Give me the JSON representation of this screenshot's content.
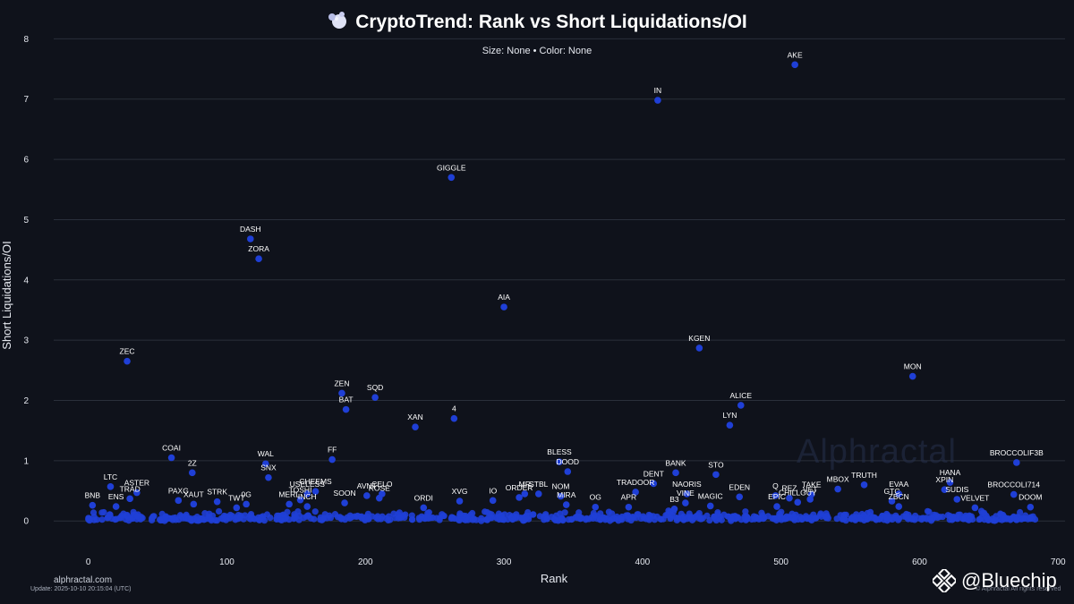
{
  "colors": {
    "background": "#0f121b",
    "grid": "#2a2f3b",
    "point": "#1f3fd6",
    "text": "#e6e9f0"
  },
  "icons": {
    "title": "bubbles-icon",
    "brand": "bluechip-diamond-icon"
  },
  "chart_data": {
    "type": "scatter",
    "title": "CryptoTrend: Rank vs Short Liquidations/OI",
    "subtitle": "Size: None • Color: None",
    "xlabel": "Rank",
    "ylabel": "Short Liquidations/OI",
    "xlim": [
      -25,
      705
    ],
    "ylim": [
      -0.62,
      8.05
    ],
    "xticks": [
      0,
      100,
      200,
      300,
      400,
      500,
      600,
      700
    ],
    "yticks": [
      0,
      1,
      2,
      3,
      4,
      5,
      6,
      7,
      8
    ],
    "grid": true,
    "labeled_points": [
      {
        "label": "AKE",
        "x": 510,
        "y": 7.57
      },
      {
        "label": "IN",
        "x": 411,
        "y": 6.98
      },
      {
        "label": "GIGGLE",
        "x": 262,
        "y": 5.7
      },
      {
        "label": "DASH",
        "x": 117,
        "y": 4.68
      },
      {
        "label": "ZORA",
        "x": 123,
        "y": 4.35
      },
      {
        "label": "AIA",
        "x": 300,
        "y": 3.55
      },
      {
        "label": "KGEN",
        "x": 441,
        "y": 2.87
      },
      {
        "label": "ZEC",
        "x": 28,
        "y": 2.65
      },
      {
        "label": "MON",
        "x": 595,
        "y": 2.4
      },
      {
        "label": "ZEN",
        "x": 183,
        "y": 2.12
      },
      {
        "label": "SQD",
        "x": 207,
        "y": 2.05
      },
      {
        "label": "ALICE",
        "x": 471,
        "y": 1.92
      },
      {
        "label": "BAT",
        "x": 186,
        "y": 1.85
      },
      {
        "label": "4",
        "x": 264,
        "y": 1.7
      },
      {
        "label": "LYN",
        "x": 463,
        "y": 1.59
      },
      {
        "label": "XAN",
        "x": 236,
        "y": 1.56
      },
      {
        "label": "COAI",
        "x": 60,
        "y": 1.05
      },
      {
        "label": "FF",
        "x": 176,
        "y": 1.02
      },
      {
        "label": "BLESS",
        "x": 340,
        "y": 0.98
      },
      {
        "label": "BROCCOLIF3B",
        "x": 670,
        "y": 0.97
      },
      {
        "label": "WAL",
        "x": 128,
        "y": 0.95
      },
      {
        "label": "BANK",
        "x": 424,
        "y": 0.8
      },
      {
        "label": "2Z",
        "x": 75,
        "y": 0.8
      },
      {
        "label": "DOOD",
        "x": 346,
        "y": 0.82
      },
      {
        "label": "STO",
        "x": 453,
        "y": 0.77
      },
      {
        "label": "SNX",
        "x": 130,
        "y": 0.72
      },
      {
        "label": "HANA",
        "x": 622,
        "y": 0.64
      },
      {
        "label": "DENT",
        "x": 408,
        "y": 0.62
      },
      {
        "label": "TRUTH",
        "x": 560,
        "y": 0.6
      },
      {
        "label": "LTC",
        "x": 16,
        "y": 0.57
      },
      {
        "label": "MBOX",
        "x": 541,
        "y": 0.53
      },
      {
        "label": "XPIN",
        "x": 618,
        "y": 0.52
      },
      {
        "label": "TRADOOR",
        "x": 395,
        "y": 0.48
      },
      {
        "label": "CHEEMS",
        "x": 164,
        "y": 0.49
      },
      {
        "label": "EVAA",
        "x": 585,
        "y": 0.45
      },
      {
        "label": "ASTER",
        "x": 35,
        "y": 0.47
      },
      {
        "label": "MR",
        "x": 315,
        "y": 0.45
      },
      {
        "label": "STBL",
        "x": 325,
        "y": 0.45
      },
      {
        "label": "NAORIS",
        "x": 432,
        "y": 0.45
      },
      {
        "label": "CELO",
        "x": 212,
        "y": 0.45
      },
      {
        "label": "BROCCOLI714",
        "x": 668,
        "y": 0.44
      },
      {
        "label": "TAKE",
        "x": 522,
        "y": 0.44
      },
      {
        "label": "USELESS",
        "x": 158,
        "y": 0.45
      },
      {
        "label": "Q",
        "x": 496,
        "y": 0.42
      },
      {
        "label": "AVNT",
        "x": 201,
        "y": 0.42
      },
      {
        "label": "NOM",
        "x": 341,
        "y": 0.41
      },
      {
        "label": "EDEN",
        "x": 470,
        "y": 0.4
      },
      {
        "label": "ORDER",
        "x": 311,
        "y": 0.39
      },
      {
        "label": "TRAD",
        "x": 30,
        "y": 0.37
      },
      {
        "label": "PAXG",
        "x": 65,
        "y": 0.34
      },
      {
        "label": "ROSE",
        "x": 210,
        "y": 0.38
      },
      {
        "label": "IO",
        "x": 292,
        "y": 0.34
      },
      {
        "label": "REZ",
        "x": 506,
        "y": 0.38
      },
      {
        "label": "VET",
        "x": 521,
        "y": 0.36
      },
      {
        "label": "SUDIS",
        "x": 627,
        "y": 0.36
      },
      {
        "label": "XVG",
        "x": 268,
        "y": 0.33
      },
      {
        "label": "STRK",
        "x": 93,
        "y": 0.32
      },
      {
        "label": "TOSHI",
        "x": 153,
        "y": 0.35
      },
      {
        "label": "GTC",
        "x": 580,
        "y": 0.33
      },
      {
        "label": "VINE",
        "x": 431,
        "y": 0.3
      },
      {
        "label": "SOON",
        "x": 185,
        "y": 0.3
      },
      {
        "label": "MIRA",
        "x": 345,
        "y": 0.27
      },
      {
        "label": "0G",
        "x": 114,
        "y": 0.28
      },
      {
        "label": "MAGIC",
        "x": 449,
        "y": 0.25
      },
      {
        "label": "BNB",
        "x": 3,
        "y": 0.26
      },
      {
        "label": "XAUT",
        "x": 76,
        "y": 0.28
      },
      {
        "label": "MERL",
        "x": 145,
        "y": 0.28
      },
      {
        "label": "ENS",
        "x": 20,
        "y": 0.24
      },
      {
        "label": "INCH",
        "x": 158,
        "y": 0.24
      },
      {
        "label": "EPIC",
        "x": 497,
        "y": 0.24
      },
      {
        "label": "TWT",
        "x": 107,
        "y": 0.22
      },
      {
        "label": "ORDI",
        "x": 242,
        "y": 0.22
      },
      {
        "label": "OG",
        "x": 366,
        "y": 0.23
      },
      {
        "label": "APR",
        "x": 390,
        "y": 0.23
      },
      {
        "label": "B3",
        "x": 423,
        "y": 0.2
      },
      {
        "label": "VELVET",
        "x": 640,
        "y": 0.22
      },
      {
        "label": "ZBCN",
        "x": 585,
        "y": 0.24
      },
      {
        "label": "DOOM",
        "x": 680,
        "y": 0.23
      },
      {
        "label": "CHILLGUY",
        "x": 512,
        "y": 0.31
      }
    ],
    "cluster": {
      "description_hidden": "",
      "x_min": 0,
      "x_max": 686,
      "y_min": 0.0,
      "y_max": 0.14
    }
  },
  "footer": {
    "site": "alphractal.com",
    "update": "Update: 2025-10-10 20:15:04 (UTC)",
    "copyright": "© Alphractal All rights reserved",
    "watermark": "Alphractal",
    "brand": "@Bluechip"
  }
}
